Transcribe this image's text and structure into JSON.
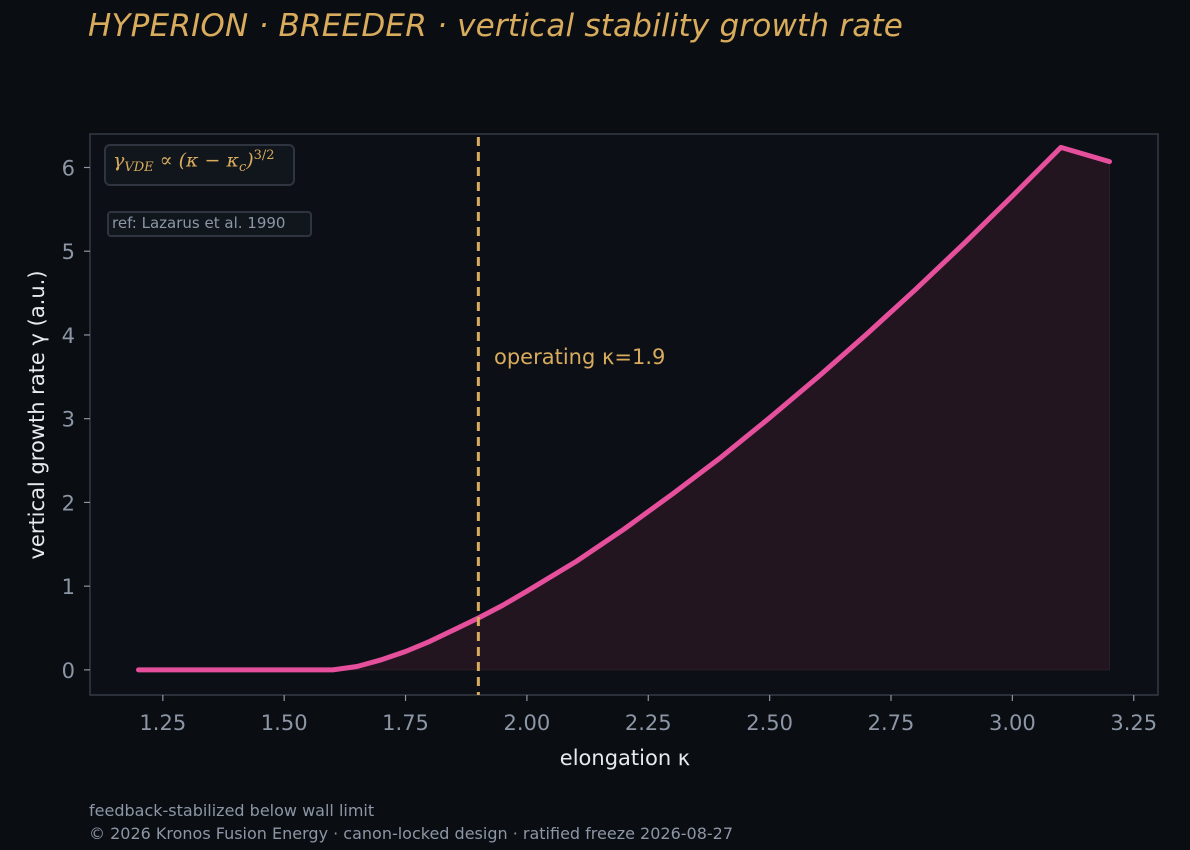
{
  "title": "HYPERION · BREEDER  ·  vertical stability growth rate",
  "footer": {
    "line1": "feedback-stabilized below wall limit",
    "line2": "© 2026 Kronos Fusion Energy · canon-locked design · ratified freeze 2026-08-27"
  },
  "colors": {
    "background": "#0a0d12",
    "plot_background": "#0c0f16",
    "accent": "#d8ac5c",
    "curve": "#e64f9b",
    "fill": "#22151f",
    "text_muted": "#8c96a5"
  },
  "chart_data": {
    "type": "line",
    "xlabel": "elongation κ",
    "ylabel": "vertical growth rate γ  (a.u.)",
    "xlim": [
      1.1,
      3.3
    ],
    "ylim": [
      -0.3,
      6.4
    ],
    "x_ticks": [
      1.25,
      1.5,
      1.75,
      2.0,
      2.25,
      2.5,
      2.75,
      3.0,
      3.25
    ],
    "x_tick_labels": [
      "1.25",
      "1.50",
      "1.75",
      "2.00",
      "2.25",
      "2.50",
      "2.75",
      "3.00",
      "3.25"
    ],
    "y_ticks": [
      0,
      1,
      2,
      3,
      4,
      5,
      6
    ],
    "y_tick_labels": [
      "0",
      "1",
      "2",
      "3",
      "4",
      "5",
      "6"
    ],
    "grid": false,
    "legend_position": "top-left",
    "series": [
      {
        "x": [
          1.2,
          1.3,
          1.4,
          1.5,
          1.6,
          1.65,
          1.7,
          1.75,
          1.8,
          1.85,
          1.9,
          1.95,
          2.0,
          2.1,
          2.2,
          2.3,
          2.4,
          2.5,
          2.6,
          2.7,
          2.8,
          2.9,
          3.0,
          3.1,
          3.2
        ],
        "y": [
          0,
          0,
          0,
          0,
          0,
          0.04,
          0.12,
          0.22,
          0.34,
          0.48,
          0.62,
          0.77,
          0.94,
          1.29,
          1.68,
          2.1,
          2.54,
          3.01,
          3.5,
          4.01,
          4.54,
          5.09,
          5.66,
          6.24,
          6.07
        ],
        "filled": true
      }
    ],
    "formula": {
      "gamma": "γ",
      "sub": "VDE",
      "body": " ∝ (κ − κ",
      "sub2": "c",
      "close": ")",
      "sup": "3/2"
    },
    "reference": "ref: Lazarus et al. 1990",
    "vline": {
      "x": 1.9,
      "label": "operating κ=1.9"
    }
  }
}
